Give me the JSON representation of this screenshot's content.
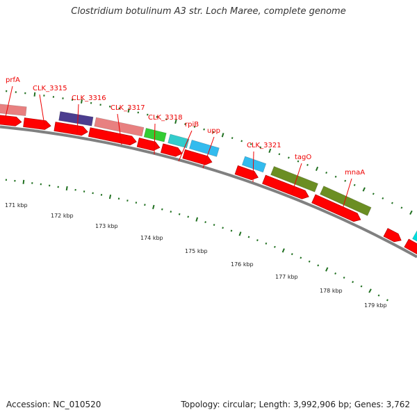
{
  "title": "Clostridium botulinum A3 str. Loch Maree, complete genome",
  "accession": "Accession: NC_010520",
  "summary": "Topology: circular; Length: 3,992,906 bp; Genes: 3,762",
  "colors": {
    "backbone": "#808080",
    "cds": "#ff0000",
    "tick": "#207020",
    "label": "#ee0000",
    "prfA": "#e88080",
    "CLK_3315": "#4b3d8f",
    "CLK_3316": "#e88080",
    "CLK_3317": "#33cc33",
    "CLK_3318": "#33cccc",
    "rpiB": "#33bbee",
    "upp": "#33bbee",
    "tagO": "#6b8e23",
    "mnaA": "#6b8e23",
    "edge": "#00dddd"
  },
  "gene_labels": [
    "prfA",
    "CLK_3315",
    "CLK_3316",
    "CLK_3317",
    "CLK_3318",
    "rpiB",
    "upp",
    "CLK_3321",
    "tagO",
    "mnaA"
  ],
  "scale_labels": [
    "171 kbp",
    "172 kbp",
    "173 kbp",
    "174 kbp",
    "175 kbp",
    "176 kbp",
    "177 kbp",
    "178 kbp",
    "179 kbp"
  ]
}
